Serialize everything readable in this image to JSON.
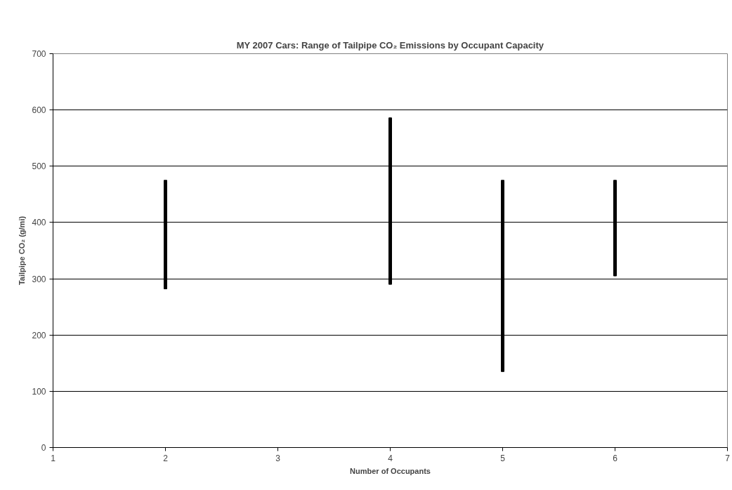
{
  "chart_data": {
    "type": "bar",
    "title": "MY 2007 Cars: Range of Tailpipe CO₂ Emissions by Occupant Capacity",
    "xlabel": "Number of Occupants",
    "ylabel": "Tailpipe CO₂ (g/mi)",
    "x": [
      2,
      4,
      5,
      6
    ],
    "base": [
      282,
      290,
      135,
      305
    ],
    "values": [
      193,
      296,
      340,
      170
    ],
    "color": "#000000",
    "xlim": [
      1,
      7
    ],
    "xticks": [
      1,
      2,
      3,
      4,
      5,
      6,
      7
    ],
    "ylim": [
      0,
      700
    ],
    "yticks": [
      0,
      100,
      200,
      300,
      400,
      500,
      600,
      700
    ],
    "grid": "y"
  }
}
